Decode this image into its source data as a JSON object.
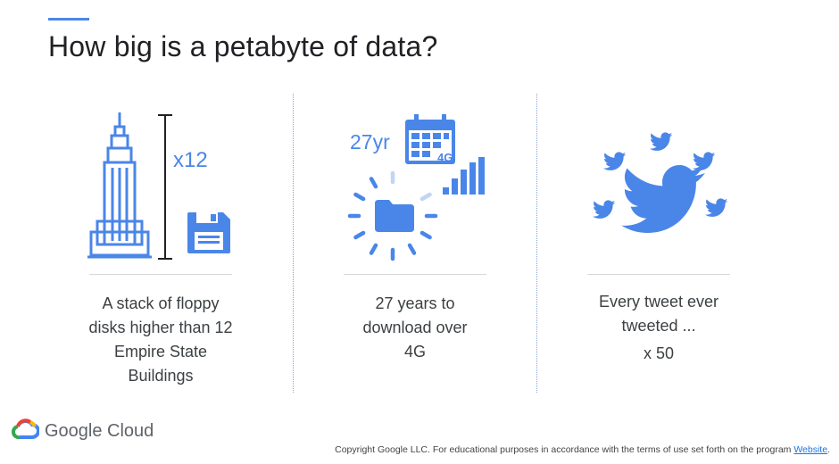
{
  "slide": {
    "title": "How big is a petabyte of data?",
    "accent_color": "#4a86e8"
  },
  "columns": [
    {
      "icon_names": [
        "empire-state-building-icon",
        "height-bracket-icon",
        "floppy-disk-icon"
      ],
      "multiplier_label": "x12",
      "caption_lines": [
        "A stack of floppy",
        "disks higher than 12",
        "Empire State",
        "Buildings"
      ]
    },
    {
      "icon_names": [
        "calendar-icon",
        "signal-bars-icon",
        "loading-spinner-icon",
        "folder-icon"
      ],
      "years_label": "27yr",
      "network_label": "4G",
      "caption_lines": [
        "27 years to",
        "download over",
        "4G"
      ]
    },
    {
      "icon_names": [
        "twitter-bird-icon"
      ],
      "caption_lines": [
        "Every tweet ever",
        "tweeted ...",
        "x 50"
      ]
    }
  ],
  "branding": {
    "logo_icon": "google-cloud-icon",
    "logo_text": "Google Cloud"
  },
  "footer": {
    "text": "Copyright Google LLC. For educational purposes in accordance with the terms of use set forth on the program ",
    "link_text": "Website",
    "trailing": "."
  }
}
